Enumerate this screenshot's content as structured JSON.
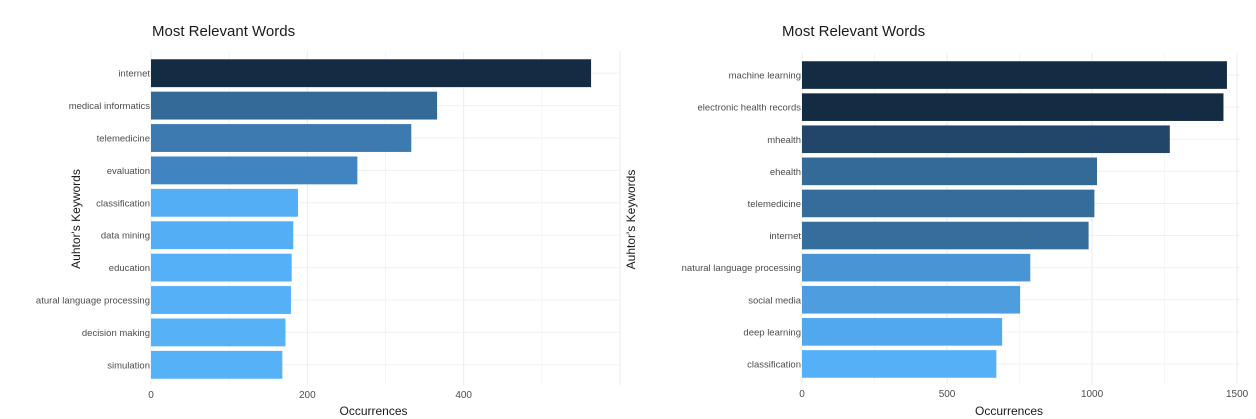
{
  "chart_data": [
    {
      "type": "bar",
      "orientation": "horizontal",
      "title": "Most Relevant Words",
      "xlabel": "Occurrences",
      "ylabel": "Auhtor's Keywords",
      "categories": [
        "internet",
        "medical informatics",
        "telemedicine",
        "evaluation",
        "classification",
        "data mining",
        "education",
        "natural language processing",
        "decision making",
        "simulation"
      ],
      "category_labels": [
        "internet",
        "medical informatics",
        "telemedicine",
        "evaluation",
        "classification",
        "data mining",
        "education",
        "atural language processing",
        "decision making",
        "simulation"
      ],
      "values": [
        563,
        366,
        333,
        264,
        188,
        182,
        180,
        179,
        172,
        168
      ],
      "colors": [
        "#132b43",
        "#336a98",
        "#3c7ab0",
        "#4085c1",
        "#54aef5",
        "#54aef5",
        "#55b0f7",
        "#55b0f7",
        "#56b1f7",
        "#56b1f7"
      ],
      "xlim": [
        0,
        600
      ],
      "xticks": [
        0,
        200,
        400
      ],
      "grid": true
    },
    {
      "type": "bar",
      "orientation": "horizontal",
      "title": "Most Relevant Words",
      "xlabel": "Occurrences",
      "ylabel": "Auhtor's Keywords",
      "categories": [
        "machine learning",
        "electronic health records",
        "mhealth",
        "ehealth",
        "telemedicine",
        "internet",
        "natural language processing",
        "social media",
        "deep learning",
        "classification"
      ],
      "category_labels": [
        "machine learning",
        "electronic health records",
        "mhealth",
        "ehealth",
        "telemedicine",
        "internet",
        "natural language processing",
        "social media",
        "deep learning",
        "classification"
      ],
      "values": [
        1465,
        1453,
        1268,
        1017,
        1008,
        988,
        787,
        752,
        690,
        670
      ],
      "colors": [
        "#132b43",
        "#132b43",
        "#22466a",
        "#336a98",
        "#346c9b",
        "#356e9d",
        "#4994d5",
        "#4d9ddf",
        "#52a8ec",
        "#55b0f7"
      ],
      "xlim": [
        0,
        1510
      ],
      "xticks": [
        0,
        500,
        1000,
        1500
      ],
      "grid": true
    }
  ]
}
